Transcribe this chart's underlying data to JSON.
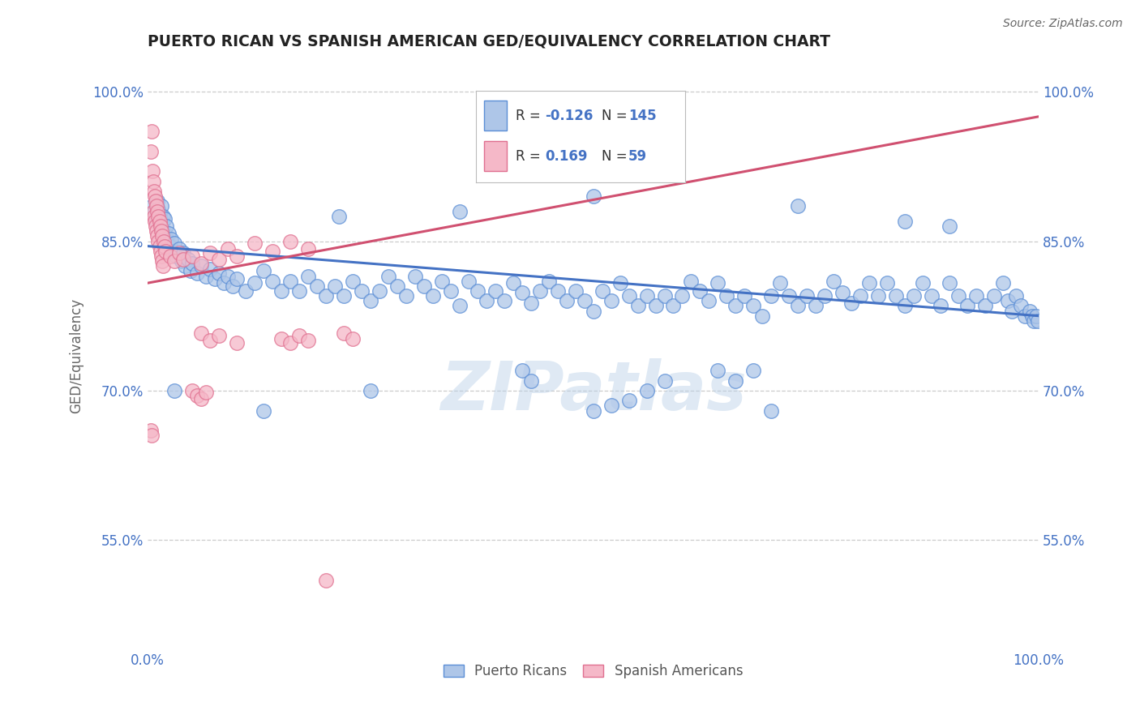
{
  "title": "PUERTO RICAN VS SPANISH AMERICAN GED/EQUIVALENCY CORRELATION CHART",
  "source": "Source: ZipAtlas.com",
  "ylabel": "GED/Equivalency",
  "xlim": [
    0.0,
    1.0
  ],
  "ylim": [
    0.44,
    1.03
  ],
  "y_tick_positions": [
    0.55,
    0.7,
    0.85,
    1.0
  ],
  "watermark": "ZIPatlas",
  "legend_r_blue": "-0.126",
  "legend_n_blue": "145",
  "legend_r_pink": "0.169",
  "legend_n_pink": "59",
  "blue_color": "#aec6e8",
  "pink_color": "#f5b8c8",
  "blue_edge_color": "#5b8ed6",
  "pink_edge_color": "#e07090",
  "blue_line_color": "#4472c4",
  "pink_line_color": "#d05070",
  "title_color": "#222222",
  "axis_label_color": "#4472c4",
  "blue_line_x": [
    0.0,
    1.0
  ],
  "blue_line_y": [
    0.845,
    0.775
  ],
  "pink_line_x": [
    0.0,
    1.0
  ],
  "pink_line_y": [
    0.808,
    0.975
  ],
  "blue_scatter": [
    [
      0.005,
      0.885
    ],
    [
      0.007,
      0.88
    ],
    [
      0.009,
      0.875
    ],
    [
      0.01,
      0.87
    ],
    [
      0.011,
      0.89
    ],
    [
      0.012,
      0.882
    ],
    [
      0.013,
      0.878
    ],
    [
      0.014,
      0.872
    ],
    [
      0.015,
      0.885
    ],
    [
      0.016,
      0.868
    ],
    [
      0.017,
      0.875
    ],
    [
      0.018,
      0.86
    ],
    [
      0.019,
      0.872
    ],
    [
      0.02,
      0.855
    ],
    [
      0.021,
      0.865
    ],
    [
      0.022,
      0.85
    ],
    [
      0.023,
      0.858
    ],
    [
      0.025,
      0.845
    ],
    [
      0.026,
      0.852
    ],
    [
      0.028,
      0.84
    ],
    [
      0.03,
      0.848
    ],
    [
      0.032,
      0.835
    ],
    [
      0.035,
      0.842
    ],
    [
      0.038,
      0.83
    ],
    [
      0.04,
      0.838
    ],
    [
      0.042,
      0.825
    ],
    [
      0.045,
      0.832
    ],
    [
      0.048,
      0.82
    ],
    [
      0.05,
      0.828
    ],
    [
      0.055,
      0.818
    ],
    [
      0.06,
      0.825
    ],
    [
      0.065,
      0.815
    ],
    [
      0.07,
      0.822
    ],
    [
      0.075,
      0.812
    ],
    [
      0.08,
      0.818
    ],
    [
      0.085,
      0.808
    ],
    [
      0.09,
      0.815
    ],
    [
      0.095,
      0.805
    ],
    [
      0.1,
      0.812
    ],
    [
      0.11,
      0.8
    ],
    [
      0.12,
      0.808
    ],
    [
      0.13,
      0.82
    ],
    [
      0.14,
      0.81
    ],
    [
      0.15,
      0.8
    ],
    [
      0.16,
      0.81
    ],
    [
      0.17,
      0.8
    ],
    [
      0.18,
      0.815
    ],
    [
      0.19,
      0.805
    ],
    [
      0.2,
      0.795
    ],
    [
      0.21,
      0.805
    ],
    [
      0.22,
      0.795
    ],
    [
      0.23,
      0.81
    ],
    [
      0.24,
      0.8
    ],
    [
      0.25,
      0.79
    ],
    [
      0.26,
      0.8
    ],
    [
      0.27,
      0.815
    ],
    [
      0.28,
      0.805
    ],
    [
      0.29,
      0.795
    ],
    [
      0.3,
      0.815
    ],
    [
      0.31,
      0.805
    ],
    [
      0.32,
      0.795
    ],
    [
      0.33,
      0.81
    ],
    [
      0.34,
      0.8
    ],
    [
      0.35,
      0.785
    ],
    [
      0.36,
      0.81
    ],
    [
      0.37,
      0.8
    ],
    [
      0.38,
      0.79
    ],
    [
      0.39,
      0.8
    ],
    [
      0.4,
      0.79
    ],
    [
      0.41,
      0.808
    ],
    [
      0.42,
      0.798
    ],
    [
      0.43,
      0.788
    ],
    [
      0.44,
      0.8
    ],
    [
      0.45,
      0.81
    ],
    [
      0.46,
      0.8
    ],
    [
      0.47,
      0.79
    ],
    [
      0.48,
      0.8
    ],
    [
      0.49,
      0.79
    ],
    [
      0.5,
      0.78
    ],
    [
      0.51,
      0.8
    ],
    [
      0.52,
      0.79
    ],
    [
      0.53,
      0.808
    ],
    [
      0.54,
      0.795
    ],
    [
      0.55,
      0.785
    ],
    [
      0.56,
      0.795
    ],
    [
      0.57,
      0.785
    ],
    [
      0.58,
      0.795
    ],
    [
      0.59,
      0.785
    ],
    [
      0.6,
      0.795
    ],
    [
      0.61,
      0.81
    ],
    [
      0.62,
      0.8
    ],
    [
      0.63,
      0.79
    ],
    [
      0.64,
      0.808
    ],
    [
      0.65,
      0.795
    ],
    [
      0.66,
      0.785
    ],
    [
      0.67,
      0.795
    ],
    [
      0.68,
      0.785
    ],
    [
      0.69,
      0.775
    ],
    [
      0.7,
      0.795
    ],
    [
      0.71,
      0.808
    ],
    [
      0.72,
      0.795
    ],
    [
      0.73,
      0.785
    ],
    [
      0.74,
      0.795
    ],
    [
      0.75,
      0.785
    ],
    [
      0.76,
      0.795
    ],
    [
      0.77,
      0.81
    ],
    [
      0.78,
      0.798
    ],
    [
      0.79,
      0.788
    ],
    [
      0.8,
      0.795
    ],
    [
      0.81,
      0.808
    ],
    [
      0.82,
      0.795
    ],
    [
      0.83,
      0.808
    ],
    [
      0.84,
      0.795
    ],
    [
      0.85,
      0.785
    ],
    [
      0.86,
      0.795
    ],
    [
      0.87,
      0.808
    ],
    [
      0.88,
      0.795
    ],
    [
      0.89,
      0.785
    ],
    [
      0.9,
      0.808
    ],
    [
      0.91,
      0.795
    ],
    [
      0.92,
      0.785
    ],
    [
      0.93,
      0.795
    ],
    [
      0.94,
      0.785
    ],
    [
      0.95,
      0.795
    ],
    [
      0.96,
      0.808
    ],
    [
      0.965,
      0.79
    ],
    [
      0.97,
      0.78
    ],
    [
      0.975,
      0.795
    ],
    [
      0.98,
      0.785
    ],
    [
      0.985,
      0.775
    ],
    [
      0.99,
      0.78
    ],
    [
      0.993,
      0.775
    ],
    [
      0.995,
      0.77
    ],
    [
      0.997,
      0.775
    ],
    [
      0.999,
      0.77
    ],
    [
      0.215,
      0.875
    ],
    [
      0.35,
      0.88
    ],
    [
      0.5,
      0.895
    ],
    [
      0.73,
      0.885
    ],
    [
      0.85,
      0.87
    ],
    [
      0.9,
      0.865
    ],
    [
      0.03,
      0.7
    ],
    [
      0.13,
      0.68
    ],
    [
      0.25,
      0.7
    ],
    [
      0.42,
      0.72
    ],
    [
      0.43,
      0.71
    ],
    [
      0.5,
      0.68
    ],
    [
      0.52,
      0.685
    ],
    [
      0.54,
      0.69
    ],
    [
      0.56,
      0.7
    ],
    [
      0.58,
      0.71
    ],
    [
      0.64,
      0.72
    ],
    [
      0.66,
      0.71
    ],
    [
      0.68,
      0.72
    ],
    [
      0.7,
      0.68
    ]
  ],
  "pink_scatter": [
    [
      0.003,
      0.94
    ],
    [
      0.004,
      0.96
    ],
    [
      0.005,
      0.92
    ],
    [
      0.006,
      0.88
    ],
    [
      0.006,
      0.91
    ],
    [
      0.007,
      0.875
    ],
    [
      0.007,
      0.9
    ],
    [
      0.008,
      0.87
    ],
    [
      0.008,
      0.895
    ],
    [
      0.009,
      0.865
    ],
    [
      0.009,
      0.89
    ],
    [
      0.01,
      0.86
    ],
    [
      0.01,
      0.885
    ],
    [
      0.011,
      0.855
    ],
    [
      0.011,
      0.88
    ],
    [
      0.012,
      0.85
    ],
    [
      0.012,
      0.875
    ],
    [
      0.013,
      0.845
    ],
    [
      0.013,
      0.87
    ],
    [
      0.014,
      0.84
    ],
    [
      0.014,
      0.865
    ],
    [
      0.015,
      0.835
    ],
    [
      0.015,
      0.86
    ],
    [
      0.016,
      0.83
    ],
    [
      0.016,
      0.855
    ],
    [
      0.017,
      0.825
    ],
    [
      0.018,
      0.85
    ],
    [
      0.019,
      0.845
    ],
    [
      0.02,
      0.84
    ],
    [
      0.025,
      0.835
    ],
    [
      0.03,
      0.83
    ],
    [
      0.035,
      0.838
    ],
    [
      0.04,
      0.832
    ],
    [
      0.05,
      0.835
    ],
    [
      0.06,
      0.828
    ],
    [
      0.07,
      0.838
    ],
    [
      0.08,
      0.832
    ],
    [
      0.09,
      0.842
    ],
    [
      0.1,
      0.835
    ],
    [
      0.12,
      0.848
    ],
    [
      0.14,
      0.84
    ],
    [
      0.16,
      0.85
    ],
    [
      0.18,
      0.842
    ],
    [
      0.06,
      0.758
    ],
    [
      0.07,
      0.75
    ],
    [
      0.08,
      0.755
    ],
    [
      0.1,
      0.748
    ],
    [
      0.15,
      0.752
    ],
    [
      0.16,
      0.748
    ],
    [
      0.17,
      0.755
    ],
    [
      0.18,
      0.75
    ],
    [
      0.22,
      0.758
    ],
    [
      0.23,
      0.752
    ],
    [
      0.05,
      0.7
    ],
    [
      0.055,
      0.695
    ],
    [
      0.06,
      0.692
    ],
    [
      0.065,
      0.698
    ],
    [
      0.2,
      0.51
    ],
    [
      0.003,
      0.66
    ],
    [
      0.004,
      0.655
    ]
  ]
}
